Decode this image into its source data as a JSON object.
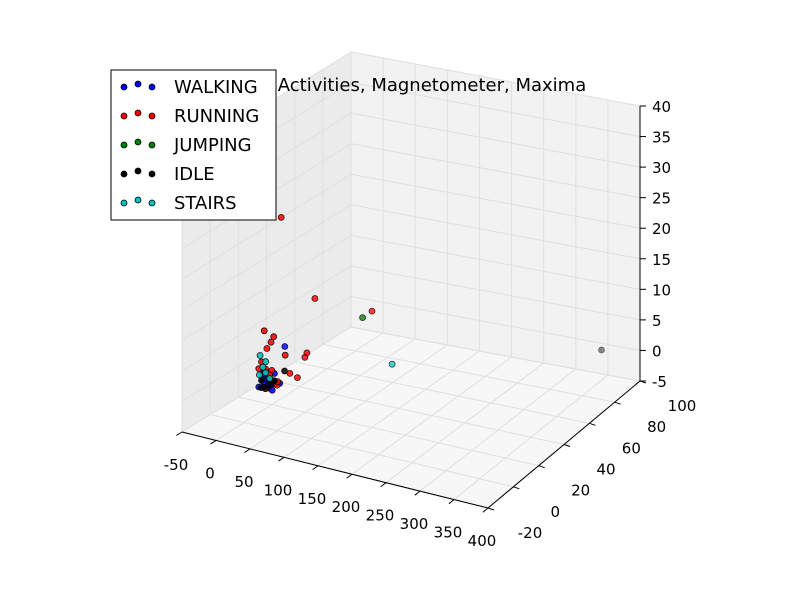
{
  "chart_data": {
    "type": "scatter",
    "title": "Activities, Magnetometer, Maxima",
    "xlabel": "",
    "ylabel": "",
    "zlabel": "",
    "xlim": [
      -50,
      400
    ],
    "ylim": [
      -20,
      100
    ],
    "zlim": [
      -5,
      40
    ],
    "x_ticks": [
      "-50",
      "0",
      "50",
      "100",
      "150",
      "200",
      "250",
      "300",
      "350",
      "400"
    ],
    "y_ticks": [
      "-20",
      "0",
      "20",
      "40",
      "60",
      "80",
      "100"
    ],
    "z_ticks": [
      "-5",
      "0",
      "5",
      "10",
      "15",
      "20",
      "25",
      "30",
      "35",
      "40"
    ],
    "grid": true,
    "legend_position": "top-left",
    "series": [
      {
        "name": "WALKING",
        "color": "#0000ff",
        "points": [
          [
            25,
            2,
            2
          ],
          [
            30,
            3,
            1
          ],
          [
            35,
            1,
            2
          ],
          [
            20,
            4,
            3
          ],
          [
            28,
            2,
            1
          ],
          [
            22,
            5,
            2
          ],
          [
            40,
            3,
            2
          ],
          [
            33,
            6,
            3
          ],
          [
            18,
            2,
            1
          ],
          [
            26,
            1,
            3
          ],
          [
            45,
            4,
            2
          ],
          [
            38,
            2,
            1
          ],
          [
            30,
            15,
            6
          ]
        ]
      },
      {
        "name": "RUNNING",
        "color": "#ff0000",
        "points": [
          [
            35,
            10,
            28
          ],
          [
            75,
            15,
            15
          ],
          [
            130,
            30,
            12
          ],
          [
            30,
            5,
            2
          ],
          [
            25,
            8,
            3
          ],
          [
            20,
            3,
            5
          ],
          [
            28,
            6,
            8
          ],
          [
            22,
            4,
            10
          ],
          [
            18,
            2,
            4
          ],
          [
            35,
            7,
            1
          ],
          [
            40,
            5,
            2
          ],
          [
            30,
            4,
            3
          ],
          [
            26,
            3,
            4
          ],
          [
            50,
            9,
            3
          ],
          [
            55,
            12,
            2
          ],
          [
            60,
            15,
            5
          ],
          [
            65,
            14,
            6
          ],
          [
            45,
            8,
            6
          ],
          [
            24,
            5,
            7
          ],
          [
            32,
            6,
            9
          ],
          [
            28,
            2,
            1
          ]
        ]
      },
      {
        "name": "JUMPING",
        "color": "#008000",
        "points": [
          [
            120,
            28,
            11
          ],
          [
            22,
            4,
            3
          ],
          [
            28,
            5,
            2
          ]
        ]
      },
      {
        "name": "IDLE",
        "color": "#000000",
        "points": [
          [
            360,
            90,
            1
          ],
          [
            40,
            10,
            3
          ],
          [
            25,
            3,
            1
          ],
          [
            30,
            4,
            2
          ],
          [
            22,
            2,
            1
          ],
          [
            35,
            5,
            2
          ],
          [
            20,
            3,
            2
          ],
          [
            28,
            6,
            1
          ]
        ]
      },
      {
        "name": "STAIRS",
        "color": "#00c0c0",
        "points": [
          [
            140,
            40,
            2
          ],
          [
            18,
            3,
            6
          ],
          [
            20,
            4,
            4
          ],
          [
            22,
            5,
            3
          ],
          [
            26,
            6,
            2
          ],
          [
            24,
            4,
            5
          ],
          [
            19,
            2,
            3
          ]
        ]
      }
    ]
  }
}
